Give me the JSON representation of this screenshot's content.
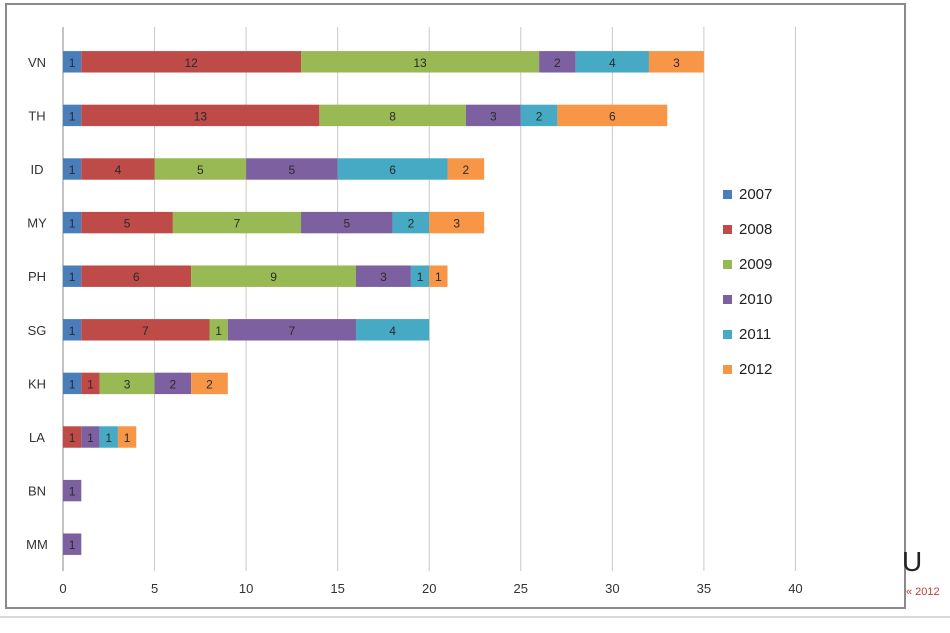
{
  "chart_data": {
    "type": "bar",
    "orientation": "horizontal",
    "stacked": true,
    "categories": [
      "VN",
      "TH",
      "ID",
      "MY",
      "PH",
      "SG",
      "KH",
      "LA",
      "BN",
      "MM"
    ],
    "series": [
      {
        "name": "2007",
        "color": "#4a7ebb",
        "values": [
          1,
          1,
          1,
          1,
          1,
          1,
          1,
          0,
          0,
          0
        ]
      },
      {
        "name": "2008",
        "color": "#be4b48",
        "values": [
          12,
          13,
          4,
          5,
          6,
          7,
          1,
          1,
          0,
          0
        ]
      },
      {
        "name": "2009",
        "color": "#98b954",
        "values": [
          13,
          8,
          5,
          7,
          9,
          1,
          3,
          0,
          0,
          0
        ]
      },
      {
        "name": "2010",
        "color": "#7d60a0",
        "values": [
          2,
          3,
          5,
          5,
          3,
          7,
          2,
          1,
          1,
          1
        ]
      },
      {
        "name": "2011",
        "color": "#46aac5",
        "values": [
          4,
          2,
          6,
          2,
          1,
          4,
          0,
          1,
          0,
          0
        ]
      },
      {
        "name": "2012",
        "color": "#f79646",
        "values": [
          3,
          6,
          2,
          3,
          1,
          0,
          2,
          1,
          0,
          0
        ]
      }
    ],
    "xlim": [
      0,
      45
    ],
    "xticks": [
      0,
      5,
      10,
      15,
      20,
      25,
      30,
      35,
      40
    ],
    "grid": true,
    "legend_position": "right"
  },
  "side_text": {
    "glyph": "U",
    "year": "« 2012"
  }
}
